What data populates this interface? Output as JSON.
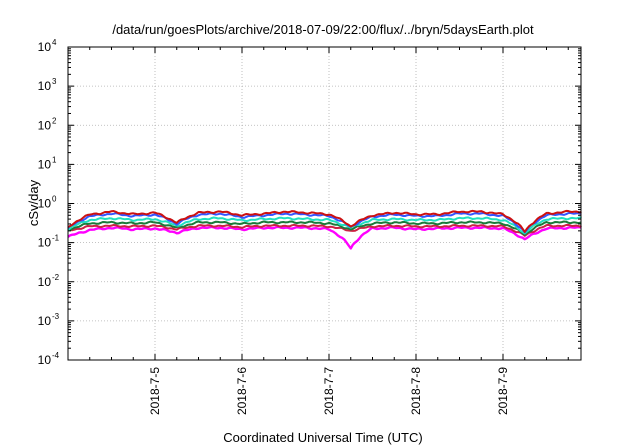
{
  "chart_data": {
    "type": "line",
    "title": "/data/run/goesPlots/archive/2018-07-09/22:00/flux/../bryn/5daysEarth.plot",
    "xlabel": "Coordinated Universal Time (UTC)",
    "ylabel": "cSv/day",
    "yscale": "log",
    "ylim": [
      0.0001,
      10000
    ],
    "xlim": [
      "2018-07-04 00:00",
      "2018-07-09 22:00"
    ],
    "grid": true,
    "x_ticks": [
      "2018-7-5",
      "2018-7-6",
      "2018-7-7",
      "2018-7-8",
      "2018-7-9"
    ],
    "y_ticks": [
      {
        "base": "10",
        "exp": "4"
      },
      {
        "base": "10",
        "exp": "3"
      },
      {
        "base": "10",
        "exp": "2"
      },
      {
        "base": "10",
        "exp": "1"
      },
      {
        "base": "10",
        "exp": "0"
      },
      {
        "base": "10",
        "exp": "-1"
      },
      {
        "base": "10",
        "exp": "-2"
      },
      {
        "base": "10",
        "exp": "-3"
      },
      {
        "base": "10",
        "exp": "-4"
      }
    ],
    "x_days": [
      0.0,
      0.25,
      0.5,
      0.75,
      1.0,
      1.25,
      1.5,
      1.75,
      2.0,
      2.25,
      2.5,
      2.75,
      3.0,
      3.25,
      3.5,
      3.75,
      4.0,
      4.25,
      4.5,
      4.75,
      5.0,
      5.25,
      5.5,
      5.75,
      5.9
    ],
    "series": [
      {
        "color": "#ff00ff",
        "values": [
          0.14,
          0.21,
          0.24,
          0.22,
          0.23,
          0.18,
          0.24,
          0.24,
          0.22,
          0.24,
          0.24,
          0.24,
          0.22,
          0.07,
          0.23,
          0.24,
          0.22,
          0.23,
          0.24,
          0.24,
          0.23,
          0.12,
          0.23,
          0.24,
          0.24
        ]
      },
      {
        "color": "#cc2244",
        "values": [
          0.2,
          0.26,
          0.27,
          0.26,
          0.27,
          0.22,
          0.27,
          0.27,
          0.25,
          0.27,
          0.27,
          0.27,
          0.26,
          0.2,
          0.26,
          0.27,
          0.26,
          0.26,
          0.27,
          0.27,
          0.26,
          0.15,
          0.27,
          0.27,
          0.27
        ]
      },
      {
        "color": "#1b7a3a",
        "values": [
          0.21,
          0.31,
          0.33,
          0.31,
          0.33,
          0.24,
          0.33,
          0.33,
          0.3,
          0.33,
          0.33,
          0.33,
          0.31,
          0.22,
          0.31,
          0.33,
          0.31,
          0.31,
          0.33,
          0.33,
          0.31,
          0.16,
          0.33,
          0.33,
          0.33
        ]
      },
      {
        "color": "#20e0c0",
        "values": [
          0.22,
          0.38,
          0.42,
          0.38,
          0.4,
          0.27,
          0.4,
          0.42,
          0.37,
          0.4,
          0.42,
          0.4,
          0.38,
          0.24,
          0.38,
          0.4,
          0.38,
          0.38,
          0.42,
          0.42,
          0.38,
          0.17,
          0.4,
          0.42,
          0.42
        ]
      },
      {
        "color": "#3355ff",
        "values": [
          0.23,
          0.47,
          0.55,
          0.48,
          0.52,
          0.3,
          0.52,
          0.55,
          0.45,
          0.5,
          0.55,
          0.52,
          0.48,
          0.25,
          0.46,
          0.52,
          0.48,
          0.48,
          0.55,
          0.55,
          0.48,
          0.18,
          0.5,
          0.55,
          0.55
        ]
      },
      {
        "color": "#cc1111",
        "values": [
          0.24,
          0.52,
          0.62,
          0.53,
          0.58,
          0.32,
          0.58,
          0.62,
          0.5,
          0.55,
          0.62,
          0.58,
          0.53,
          0.26,
          0.5,
          0.58,
          0.53,
          0.53,
          0.62,
          0.62,
          0.53,
          0.19,
          0.55,
          0.62,
          0.62
        ]
      }
    ]
  }
}
